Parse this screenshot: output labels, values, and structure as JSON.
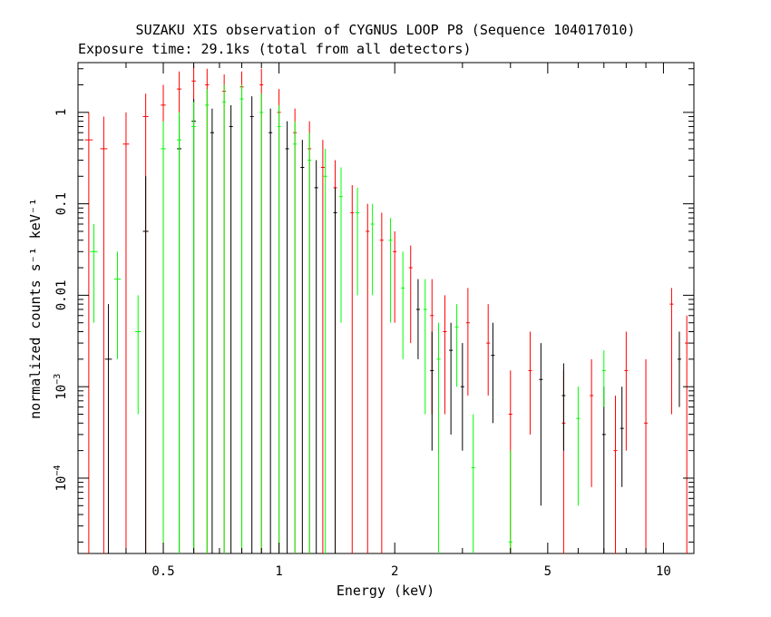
{
  "chart_data": {
    "type": "scatter",
    "title": "SUZAKU XIS observation of CYGNUS LOOP P8 (Sequence 104017010)",
    "subtitle": "Exposure time: 29.1ks (total from all detectors)",
    "xlabel": "Energy (keV)",
    "ylabel": "normalized counts s⁻¹ keV⁻¹",
    "xscale": "log",
    "yscale": "log",
    "xlim": [
      0.3,
      12
    ],
    "ylim": [
      1.5e-05,
      3.5
    ],
    "x_ticks": [
      {
        "value": 0.5,
        "label": "0.5"
      },
      {
        "value": 1,
        "label": "1"
      },
      {
        "value": 2,
        "label": "2"
      },
      {
        "value": 5,
        "label": "5"
      },
      {
        "value": 10,
        "label": "10"
      }
    ],
    "y_ticks": [
      {
        "value": 1,
        "label": "1"
      },
      {
        "value": 0.1,
        "label": "0.1"
      },
      {
        "value": 0.01,
        "label": "0.01"
      },
      {
        "value": 0.001,
        "label": "10",
        "exp": "−3"
      },
      {
        "value": 0.0001,
        "label": "10",
        "exp": "−4"
      }
    ],
    "grid": false,
    "series": [
      {
        "color": "#ff0000",
        "points": [
          {
            "x": 0.32,
            "y": 0.5,
            "ylo": 1.5e-05,
            "yhi": 1.0
          },
          {
            "x": 0.35,
            "y": 0.4,
            "ylo": 1.5e-05,
            "yhi": 0.9
          },
          {
            "x": 0.4,
            "y": 0.45,
            "ylo": 1.5e-05,
            "yhi": 1.0
          },
          {
            "x": 0.45,
            "y": 0.9,
            "ylo": 1.5e-05,
            "yhi": 1.6
          },
          {
            "x": 0.5,
            "y": 1.2,
            "ylo": 1.5e-05,
            "yhi": 2.0
          },
          {
            "x": 0.55,
            "y": 1.8,
            "ylo": 1.5e-05,
            "yhi": 2.8
          },
          {
            "x": 0.6,
            "y": 2.2,
            "ylo": 1.5e-05,
            "yhi": 3.3
          },
          {
            "x": 0.65,
            "y": 2.0,
            "ylo": 1.5e-05,
            "yhi": 3.0
          },
          {
            "x": 0.72,
            "y": 1.7,
            "ylo": 1.5e-05,
            "yhi": 2.6
          },
          {
            "x": 0.8,
            "y": 1.9,
            "ylo": 1.5e-05,
            "yhi": 2.8
          },
          {
            "x": 0.9,
            "y": 2.0,
            "ylo": 1.5e-05,
            "yhi": 3.0
          },
          {
            "x": 1.0,
            "y": 1.0,
            "ylo": 1.5e-05,
            "yhi": 1.8
          },
          {
            "x": 1.1,
            "y": 0.6,
            "ylo": 1.5e-05,
            "yhi": 1.1
          },
          {
            "x": 1.2,
            "y": 0.4,
            "ylo": 1.5e-05,
            "yhi": 0.8
          },
          {
            "x": 1.3,
            "y": 0.25,
            "ylo": 1.5e-05,
            "yhi": 0.5
          },
          {
            "x": 1.4,
            "y": 0.15,
            "ylo": 1.5e-05,
            "yhi": 0.3
          },
          {
            "x": 1.55,
            "y": 0.08,
            "ylo": 1.5e-05,
            "yhi": 0.16
          },
          {
            "x": 1.7,
            "y": 0.05,
            "ylo": 1.5e-05,
            "yhi": 0.1
          },
          {
            "x": 1.85,
            "y": 0.04,
            "ylo": 1.5e-05,
            "yhi": 0.08
          },
          {
            "x": 2.0,
            "y": 0.03,
            "ylo": 0.005,
            "yhi": 0.05
          },
          {
            "x": 2.2,
            "y": 0.02,
            "ylo": 0.003,
            "yhi": 0.035
          },
          {
            "x": 2.5,
            "y": 0.006,
            "ylo": 0.0005,
            "yhi": 0.015
          },
          {
            "x": 2.7,
            "y": 0.004,
            "ylo": 0.0005,
            "yhi": 0.01
          },
          {
            "x": 3.1,
            "y": 0.005,
            "ylo": 0.0008,
            "yhi": 0.012
          },
          {
            "x": 3.5,
            "y": 0.003,
            "ylo": 0.0008,
            "yhi": 0.008
          },
          {
            "x": 4.0,
            "y": 0.0005,
            "ylo": 1.5e-05,
            "yhi": 0.0015
          },
          {
            "x": 4.5,
            "y": 0.0015,
            "ylo": 0.0003,
            "yhi": 0.004
          },
          {
            "x": 5.5,
            "y": 0.0004,
            "ylo": 1.5e-05,
            "yhi": 0.0015
          },
          {
            "x": 6.5,
            "y": 0.0008,
            "ylo": 8e-05,
            "yhi": 0.002
          },
          {
            "x": 7.5,
            "y": 0.0002,
            "ylo": 1.5e-05,
            "yhi": 0.0008
          },
          {
            "x": 8.0,
            "y": 0.0015,
            "ylo": 0.0002,
            "yhi": 0.004
          },
          {
            "x": 9.0,
            "y": 0.0004,
            "ylo": 1.5e-05,
            "yhi": 0.002
          },
          {
            "x": 10.5,
            "y": 0.008,
            "ylo": 0.0005,
            "yhi": 0.012
          },
          {
            "x": 11.5,
            "y": 0.003,
            "ylo": 1.5e-05,
            "yhi": 0.006
          }
        ]
      },
      {
        "color": "#000000",
        "points": [
          {
            "x": 0.36,
            "y": 0.002,
            "ylo": 1.5e-05,
            "yhi": 0.008
          },
          {
            "x": 0.45,
            "y": 0.05,
            "ylo": 1.5e-05,
            "yhi": 0.2
          },
          {
            "x": 0.55,
            "y": 0.4,
            "ylo": 1.5e-05,
            "yhi": 0.9
          },
          {
            "x": 0.6,
            "y": 0.8,
            "ylo": 1.5e-05,
            "yhi": 1.4
          },
          {
            "x": 0.67,
            "y": 0.6,
            "ylo": 1.5e-05,
            "yhi": 1.1
          },
          {
            "x": 0.75,
            "y": 0.7,
            "ylo": 1.5e-05,
            "yhi": 1.2
          },
          {
            "x": 0.85,
            "y": 0.9,
            "ylo": 1.5e-05,
            "yhi": 1.5
          },
          {
            "x": 0.95,
            "y": 0.6,
            "ylo": 1.5e-05,
            "yhi": 1.1
          },
          {
            "x": 1.05,
            "y": 0.4,
            "ylo": 1.5e-05,
            "yhi": 0.8
          },
          {
            "x": 1.15,
            "y": 0.25,
            "ylo": 1.5e-05,
            "yhi": 0.5
          },
          {
            "x": 1.25,
            "y": 0.15,
            "ylo": 1.5e-05,
            "yhi": 0.3
          },
          {
            "x": 1.4,
            "y": 0.08,
            "ylo": 1.5e-05,
            "yhi": 0.15
          },
          {
            "x": 2.3,
            "y": 0.007,
            "ylo": 0.002,
            "yhi": 0.015
          },
          {
            "x": 2.5,
            "y": 0.0015,
            "ylo": 0.0002,
            "yhi": 0.004
          },
          {
            "x": 2.8,
            "y": 0.0025,
            "ylo": 0.0003,
            "yhi": 0.005
          },
          {
            "x": 3.0,
            "y": 0.001,
            "ylo": 0.0002,
            "yhi": 0.003
          },
          {
            "x": 3.6,
            "y": 0.0022,
            "ylo": 0.0004,
            "yhi": 0.005
          },
          {
            "x": 4.8,
            "y": 0.0012,
            "ylo": 5e-05,
            "yhi": 0.003
          },
          {
            "x": 5.5,
            "y": 0.0008,
            "ylo": 0.0002,
            "yhi": 0.0018
          },
          {
            "x": 7.0,
            "y": 0.0003,
            "ylo": 1.5e-05,
            "yhi": 0.001
          },
          {
            "x": 7.8,
            "y": 0.00035,
            "ylo": 8e-05,
            "yhi": 0.001
          },
          {
            "x": 11.0,
            "y": 0.002,
            "ylo": 0.0006,
            "yhi": 0.004
          }
        ]
      },
      {
        "color": "#00ff00",
        "points": [
          {
            "x": 0.33,
            "y": 0.03,
            "ylo": 0.005,
            "yhi": 0.06
          },
          {
            "x": 0.38,
            "y": 0.015,
            "ylo": 0.002,
            "yhi": 0.03
          },
          {
            "x": 0.43,
            "y": 0.004,
            "ylo": 0.0005,
            "yhi": 0.01
          },
          {
            "x": 0.5,
            "y": 0.4,
            "ylo": 1.5e-05,
            "yhi": 0.8
          },
          {
            "x": 0.55,
            "y": 0.5,
            "ylo": 1.5e-05,
            "yhi": 1.0
          },
          {
            "x": 0.6,
            "y": 0.7,
            "ylo": 1.5e-05,
            "yhi": 1.3
          },
          {
            "x": 0.65,
            "y": 1.2,
            "ylo": 1.5e-05,
            "yhi": 1.8
          },
          {
            "x": 0.72,
            "y": 1.3,
            "ylo": 1.5e-05,
            "yhi": 2.0
          },
          {
            "x": 0.8,
            "y": 1.4,
            "ylo": 1.5e-05,
            "yhi": 2.0
          },
          {
            "x": 0.9,
            "y": 1.0,
            "ylo": 1.5e-05,
            "yhi": 1.6
          },
          {
            "x": 1.0,
            "y": 0.7,
            "ylo": 1.5e-05,
            "yhi": 1.2
          },
          {
            "x": 1.1,
            "y": 0.45,
            "ylo": 1.5e-05,
            "yhi": 0.8
          },
          {
            "x": 1.2,
            "y": 0.3,
            "ylo": 1.5e-05,
            "yhi": 0.6
          },
          {
            "x": 1.32,
            "y": 0.2,
            "ylo": 1.5e-05,
            "yhi": 0.4
          },
          {
            "x": 1.45,
            "y": 0.12,
            "ylo": 0.005,
            "yhi": 0.25
          },
          {
            "x": 1.6,
            "y": 0.08,
            "ylo": 0.01,
            "yhi": 0.15
          },
          {
            "x": 1.75,
            "y": 0.06,
            "ylo": 0.01,
            "yhi": 0.1
          },
          {
            "x": 1.95,
            "y": 0.04,
            "ylo": 0.005,
            "yhi": 0.07
          },
          {
            "x": 2.1,
            "y": 0.012,
            "ylo": 0.002,
            "yhi": 0.03
          },
          {
            "x": 2.4,
            "y": 0.007,
            "ylo": 0.0005,
            "yhi": 0.015
          },
          {
            "x": 2.6,
            "y": 0.002,
            "ylo": 1.5e-05,
            "yhi": 0.005
          },
          {
            "x": 2.9,
            "y": 0.0045,
            "ylo": 0.001,
            "yhi": 0.008
          },
          {
            "x": 3.2,
            "y": 0.00013,
            "ylo": 1.5e-05,
            "yhi": 0.0005
          },
          {
            "x": 4.0,
            "y": 2e-05,
            "ylo": 1.5e-05,
            "yhi": 0.0002
          },
          {
            "x": 6.0,
            "y": 0.00045,
            "ylo": 5e-05,
            "yhi": 0.001
          },
          {
            "x": 7.0,
            "y": 0.0015,
            "ylo": 0.0006,
            "yhi": 0.0025
          }
        ]
      }
    ]
  }
}
